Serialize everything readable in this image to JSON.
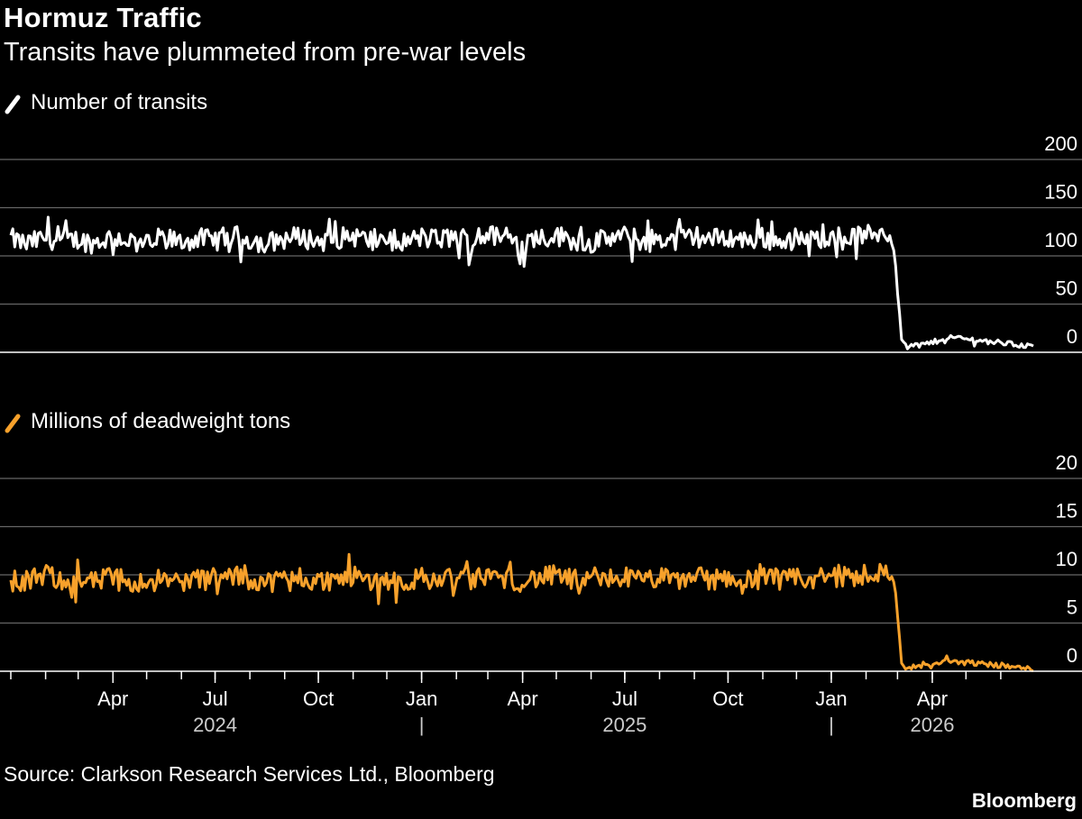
{
  "header": {
    "title": "Hormuz Traffic",
    "subtitle": "Transits have plummeted from pre-war levels"
  },
  "footer": {
    "source": "Source: Clarkson Research Services Ltd., Bloomberg",
    "brand": "Bloomberg"
  },
  "colors": {
    "background": "#000000",
    "gridline": "#666666",
    "transits_line": "#ffffff",
    "dwt_line": "#f7a12b",
    "text": "#ffffff"
  },
  "chart_data": [
    {
      "type": "line",
      "legend": "Number of transits",
      "legend_placement": "top-left",
      "color": "#ffffff",
      "ylim": [
        0,
        200
      ],
      "yticks": [
        0,
        50,
        100,
        150,
        200
      ],
      "grid": true,
      "x_range": [
        "2024-01-01",
        "2026-06-30"
      ],
      "series": [
        {
          "name": "Number of transits",
          "x": [
            "2024-01-01",
            "2024-01-15",
            "2024-02-01",
            "2024-02-15",
            "2024-03-01",
            "2024-03-15",
            "2024-04-01",
            "2024-04-15",
            "2024-05-01",
            "2024-05-15",
            "2024-06-01",
            "2024-06-15",
            "2024-07-01",
            "2024-07-15",
            "2024-08-01",
            "2024-08-15",
            "2024-09-01",
            "2024-09-15",
            "2024-10-01",
            "2024-10-15",
            "2024-11-01",
            "2024-11-15",
            "2024-12-01",
            "2024-12-15",
            "2025-01-01",
            "2025-01-15",
            "2025-02-01",
            "2025-02-15",
            "2025-03-01",
            "2025-03-15",
            "2025-04-01",
            "2025-04-15",
            "2025-05-01",
            "2025-05-15",
            "2025-06-01",
            "2025-06-15",
            "2025-07-01",
            "2025-07-15",
            "2025-08-01",
            "2025-08-15",
            "2025-09-01",
            "2025-09-15",
            "2025-10-01",
            "2025-10-15",
            "2025-11-01",
            "2025-11-15",
            "2025-12-01",
            "2025-12-15",
            "2026-01-01",
            "2026-01-15",
            "2026-02-01",
            "2026-02-15",
            "2026-02-25",
            "2026-03-01",
            "2026-03-05",
            "2026-03-15",
            "2026-04-01",
            "2026-04-15",
            "2026-05-01",
            "2026-05-15",
            "2026-06-01",
            "2026-06-15",
            "2026-06-30"
          ],
          "values": [
            118,
            112,
            119,
            115,
            117,
            113,
            120,
            116,
            112,
            119,
            114,
            118,
            116,
            121,
            117,
            113,
            118,
            120,
            115,
            117,
            121,
            116,
            118,
            114,
            119,
            117,
            120,
            116,
            122,
            118,
            115,
            119,
            121,
            117,
            113,
            118,
            120,
            116,
            119,
            115,
            121,
            117,
            120,
            116,
            119,
            115,
            118,
            116,
            122,
            120,
            121,
            125,
            120,
            72,
            8,
            7,
            10,
            16,
            14,
            12,
            10,
            8,
            6
          ]
        }
      ]
    },
    {
      "type": "line",
      "legend": "Millions of deadweight tons",
      "legend_placement": "top-left",
      "color": "#f7a12b",
      "ylim": [
        0,
        20
      ],
      "yticks": [
        0,
        5,
        10,
        15,
        20
      ],
      "grid": true,
      "x_range": [
        "2024-01-01",
        "2026-06-30"
      ],
      "x_tick_labels": [
        "Apr",
        "Jul",
        "Oct",
        "Jan",
        "Apr",
        "Jul",
        "Oct",
        "Jan",
        "Apr"
      ],
      "year_labels": [
        "2024",
        "|",
        "2025",
        "|",
        "2026"
      ],
      "series": [
        {
          "name": "Millions of deadweight tons",
          "x": [
            "2024-01-01",
            "2024-01-15",
            "2024-02-01",
            "2024-02-15",
            "2024-03-01",
            "2024-03-15",
            "2024-04-01",
            "2024-04-15",
            "2024-05-01",
            "2024-05-15",
            "2024-06-01",
            "2024-06-15",
            "2024-07-01",
            "2024-07-15",
            "2024-08-01",
            "2024-08-15",
            "2024-09-01",
            "2024-09-15",
            "2024-10-01",
            "2024-10-15",
            "2024-11-01",
            "2024-11-15",
            "2024-12-01",
            "2024-12-15",
            "2025-01-01",
            "2025-01-15",
            "2025-02-01",
            "2025-02-15",
            "2025-03-01",
            "2025-03-15",
            "2025-04-01",
            "2025-04-15",
            "2025-05-01",
            "2025-05-15",
            "2025-06-01",
            "2025-06-15",
            "2025-07-01",
            "2025-07-15",
            "2025-08-01",
            "2025-08-15",
            "2025-09-01",
            "2025-09-15",
            "2025-10-01",
            "2025-10-15",
            "2025-11-01",
            "2025-11-15",
            "2025-12-01",
            "2025-12-15",
            "2026-01-01",
            "2026-01-15",
            "2026-02-01",
            "2026-02-15",
            "2026-02-25",
            "2026-03-01",
            "2026-03-05",
            "2026-03-15",
            "2026-04-01",
            "2026-04-15",
            "2026-05-01",
            "2026-05-15",
            "2026-06-01",
            "2026-06-15",
            "2026-06-30"
          ],
          "values": [
            9.7,
            9.3,
            9.9,
            9.5,
            9.6,
            9.2,
            9.8,
            9.4,
            9.1,
            9.7,
            9.3,
            9.6,
            9.4,
            9.9,
            9.5,
            9.2,
            9.6,
            9.8,
            9.3,
            9.5,
            9.9,
            9.4,
            9.6,
            9.2,
            9.7,
            9.5,
            9.8,
            9.4,
            10.0,
            9.6,
            9.3,
            9.7,
            9.9,
            9.5,
            9.2,
            9.6,
            9.8,
            9.4,
            9.7,
            9.3,
            9.9,
            9.5,
            9.8,
            9.4,
            9.7,
            9.3,
            9.6,
            9.4,
            10.1,
            9.8,
            10.0,
            10.3,
            9.8,
            6.0,
            0.4,
            0.4,
            0.6,
            1.1,
            0.9,
            0.8,
            0.6,
            0.4,
            0.2
          ]
        }
      ]
    }
  ]
}
